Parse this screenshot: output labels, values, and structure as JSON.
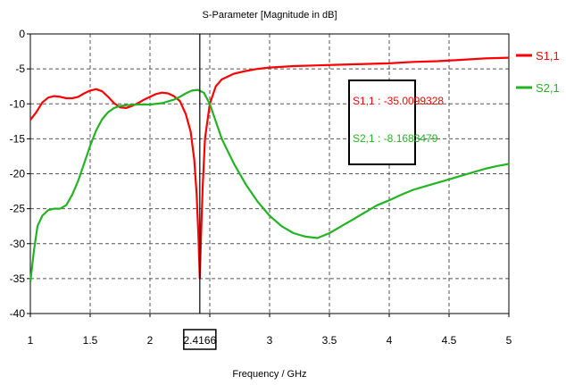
{
  "chart_data": {
    "type": "line",
    "title": "S-Parameter [Magnitude in dB]",
    "xlabel": "Frequency / GHz",
    "ylabel": "",
    "xlim": [
      1,
      5
    ],
    "ylim": [
      -40,
      0
    ],
    "x_ticks": [
      "1",
      "1.5",
      "2",
      "2.5",
      "3",
      "3.5",
      "4",
      "4.5",
      "5"
    ],
    "y_ticks": [
      "0",
      "-5",
      "-10",
      "-15",
      "-20",
      "-25",
      "-30",
      "-35",
      "-40"
    ],
    "grid": true,
    "legend_position": "right",
    "marker": {
      "x": 2.4166,
      "label": "2.4166"
    },
    "annotations": [
      "S1,1 : -35.0099328",
      "S2,1 : -8.1683479"
    ],
    "series": [
      {
        "name": "S1,1",
        "color": "#ff0000",
        "points": [
          [
            1.0,
            -12.3
          ],
          [
            1.05,
            -11.2
          ],
          [
            1.1,
            -9.8
          ],
          [
            1.15,
            -9.1
          ],
          [
            1.2,
            -8.9
          ],
          [
            1.25,
            -9.0
          ],
          [
            1.3,
            -9.2
          ],
          [
            1.35,
            -9.2
          ],
          [
            1.4,
            -9.0
          ],
          [
            1.45,
            -8.5
          ],
          [
            1.5,
            -8.1
          ],
          [
            1.55,
            -7.9
          ],
          [
            1.6,
            -8.2
          ],
          [
            1.65,
            -9.0
          ],
          [
            1.7,
            -9.9
          ],
          [
            1.75,
            -10.5
          ],
          [
            1.8,
            -10.6
          ],
          [
            1.85,
            -10.3
          ],
          [
            1.9,
            -9.9
          ],
          [
            1.95,
            -9.4
          ],
          [
            2.0,
            -9.0
          ],
          [
            2.05,
            -8.6
          ],
          [
            2.1,
            -8.4
          ],
          [
            2.15,
            -8.5
          ],
          [
            2.2,
            -8.9
          ],
          [
            2.25,
            -9.6
          ],
          [
            2.3,
            -11.5
          ],
          [
            2.34,
            -14.0
          ],
          [
            2.37,
            -18.0
          ],
          [
            2.39,
            -23.0
          ],
          [
            2.405,
            -29.0
          ],
          [
            2.4166,
            -35.0
          ],
          [
            2.425,
            -30.0
          ],
          [
            2.44,
            -22.0
          ],
          [
            2.46,
            -15.0
          ],
          [
            2.5,
            -10.0
          ],
          [
            2.55,
            -7.5
          ],
          [
            2.6,
            -6.5
          ],
          [
            2.7,
            -5.7
          ],
          [
            2.8,
            -5.3
          ],
          [
            2.9,
            -5.0
          ],
          [
            3.0,
            -4.8
          ],
          [
            3.2,
            -4.6
          ],
          [
            3.4,
            -4.5
          ],
          [
            3.6,
            -4.4
          ],
          [
            3.8,
            -4.3
          ],
          [
            4.0,
            -4.2
          ],
          [
            4.2,
            -4.0
          ],
          [
            4.4,
            -3.9
          ],
          [
            4.6,
            -3.7
          ],
          [
            4.8,
            -3.5
          ],
          [
            5.0,
            -3.4
          ]
        ]
      },
      {
        "name": "S2,1",
        "color": "#22b422",
        "points": [
          [
            1.0,
            -35.5
          ],
          [
            1.03,
            -31.0
          ],
          [
            1.06,
            -27.5
          ],
          [
            1.1,
            -26.0
          ],
          [
            1.15,
            -25.2
          ],
          [
            1.2,
            -25.0
          ],
          [
            1.25,
            -25.0
          ],
          [
            1.3,
            -24.5
          ],
          [
            1.35,
            -23.0
          ],
          [
            1.4,
            -21.0
          ],
          [
            1.45,
            -18.5
          ],
          [
            1.5,
            -16.0
          ],
          [
            1.55,
            -13.8
          ],
          [
            1.6,
            -12.2
          ],
          [
            1.65,
            -11.2
          ],
          [
            1.7,
            -10.6
          ],
          [
            1.75,
            -10.3
          ],
          [
            1.8,
            -10.2
          ],
          [
            1.9,
            -10.1
          ],
          [
            2.0,
            -10.1
          ],
          [
            2.1,
            -9.9
          ],
          [
            2.2,
            -9.4
          ],
          [
            2.25,
            -9.0
          ],
          [
            2.3,
            -8.5
          ],
          [
            2.35,
            -8.1
          ],
          [
            2.4,
            -8.0
          ],
          [
            2.45,
            -8.4
          ],
          [
            2.5,
            -10.0
          ],
          [
            2.55,
            -12.5
          ],
          [
            2.6,
            -15.0
          ],
          [
            2.7,
            -18.5
          ],
          [
            2.8,
            -21.5
          ],
          [
            2.9,
            -24.0
          ],
          [
            3.0,
            -26.0
          ],
          [
            3.1,
            -27.5
          ],
          [
            3.2,
            -28.5
          ],
          [
            3.3,
            -29.0
          ],
          [
            3.4,
            -29.2
          ],
          [
            3.5,
            -28.5
          ],
          [
            3.6,
            -27.5
          ],
          [
            3.7,
            -26.5
          ],
          [
            3.8,
            -25.5
          ],
          [
            3.9,
            -24.5
          ],
          [
            4.0,
            -23.8
          ],
          [
            4.1,
            -23.0
          ],
          [
            4.2,
            -22.3
          ],
          [
            4.3,
            -21.8
          ],
          [
            4.4,
            -21.3
          ],
          [
            4.5,
            -20.8
          ],
          [
            4.6,
            -20.3
          ],
          [
            4.7,
            -19.8
          ],
          [
            4.8,
            -19.3
          ],
          [
            4.9,
            -18.9
          ],
          [
            5.0,
            -18.6
          ]
        ]
      }
    ]
  }
}
